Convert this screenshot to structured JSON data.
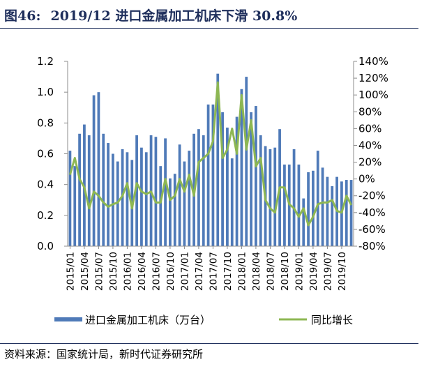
{
  "figure": {
    "label": "图46:",
    "title": "2019/12 进口金属加工机床下滑 30.8%",
    "source": "资料来源：国家统计局，新时代证券研究所"
  },
  "chart_data": {
    "type": "bar+line",
    "months": [
      "2015/01",
      "2015/02",
      "2015/03",
      "2015/04",
      "2015/05",
      "2015/06",
      "2015/07",
      "2015/08",
      "2015/09",
      "2015/10",
      "2015/11",
      "2015/12",
      "2016/01",
      "2016/02",
      "2016/03",
      "2016/04",
      "2016/05",
      "2016/06",
      "2016/07",
      "2016/08",
      "2016/09",
      "2016/10",
      "2016/11",
      "2016/12",
      "2017/01",
      "2017/02",
      "2017/03",
      "2017/04",
      "2017/05",
      "2017/06",
      "2017/07",
      "2017/08",
      "2017/09",
      "2017/10",
      "2017/11",
      "2017/12",
      "2018/01",
      "2018/02",
      "2018/03",
      "2018/04",
      "2018/05",
      "2018/06",
      "2018/07",
      "2018/08",
      "2018/09",
      "2018/10",
      "2018/11",
      "2018/12",
      "2019/01",
      "2019/02",
      "2019/03",
      "2019/04",
      "2019/05",
      "2019/06",
      "2019/07",
      "2019/08",
      "2019/09",
      "2019/10",
      "2019/11",
      "2019/12"
    ],
    "x_tick_labels": [
      "2015/01",
      "2015/04",
      "2015/07",
      "2015/10",
      "2016/01",
      "2016/04",
      "2016/07",
      "2016/10",
      "2017/01",
      "2017/04",
      "2017/07",
      "2017/10",
      "2018/01",
      "2018/04",
      "2018/07",
      "2018/10",
      "2019/01",
      "2019/04",
      "2019/07",
      "2019/10"
    ],
    "series": [
      {
        "name": "进口金属加工机床（万台）",
        "kind": "bar",
        "axis": "left",
        "color": "#4f7ab8",
        "values": [
          0.62,
          0.52,
          0.73,
          0.79,
          0.72,
          0.98,
          1.0,
          0.73,
          0.67,
          0.6,
          0.55,
          0.63,
          0.61,
          0.56,
          0.72,
          0.64,
          0.61,
          0.72,
          0.71,
          0.52,
          0.7,
          0.44,
          0.47,
          0.66,
          0.55,
          0.62,
          0.73,
          0.76,
          0.72,
          0.92,
          0.92,
          1.12,
          0.87,
          0.77,
          0.57,
          0.84,
          1.02,
          1.1,
          0.87,
          0.91,
          0.72,
          0.65,
          0.63,
          0.64,
          0.76,
          0.53,
          0.53,
          0.63,
          0.53,
          0.31,
          0.48,
          0.49,
          0.62,
          0.51,
          0.45,
          0.39,
          0.45,
          0.42,
          0.43,
          0.43
        ]
      },
      {
        "name": "同比增长",
        "kind": "line",
        "axis": "right",
        "color": "#8db753",
        "values": [
          0.05,
          0.25,
          0.0,
          -0.1,
          -0.35,
          -0.15,
          -0.2,
          -0.28,
          -0.33,
          -0.3,
          -0.28,
          -0.2,
          -0.05,
          -0.35,
          -0.05,
          -0.15,
          -0.18,
          -0.15,
          -0.28,
          -0.28,
          0.0,
          -0.25,
          -0.2,
          0.0,
          -0.15,
          0.05,
          -0.2,
          0.2,
          0.25,
          0.3,
          0.45,
          1.15,
          0.25,
          0.35,
          0.6,
          0.3,
          1.0,
          0.35,
          0.7,
          0.15,
          0.25,
          -0.25,
          -0.35,
          -0.4,
          -0.1,
          -0.1,
          -0.3,
          -0.35,
          -0.45,
          -0.35,
          -0.55,
          -0.45,
          -0.3,
          -0.28,
          -0.28,
          -0.25,
          -0.38,
          -0.4,
          -0.2,
          -0.31
        ]
      }
    ],
    "y_left": {
      "min": 0,
      "max": 1.2,
      "ticks": [
        "0.0",
        "0.2",
        "0.4",
        "0.6",
        "0.8",
        "1.0",
        "1.2"
      ]
    },
    "y_right": {
      "min": -0.8,
      "max": 1.4,
      "ticks": [
        "-80%",
        "-60%",
        "-40%",
        "-20%",
        "0%",
        "20%",
        "40%",
        "60%",
        "80%",
        "100%",
        "120%",
        "140%"
      ]
    },
    "grid": false,
    "legend_position": "bottom"
  }
}
